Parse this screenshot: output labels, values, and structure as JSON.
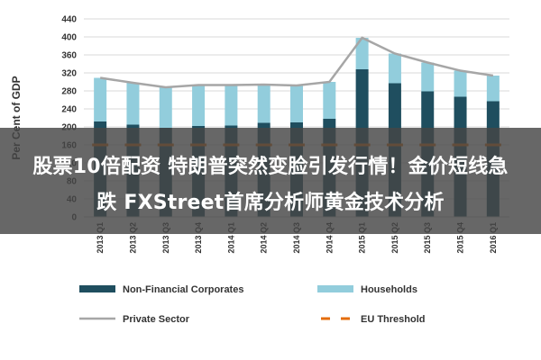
{
  "overlay": {
    "line1": "股票10倍配资 特朗普突然变脸引发行情！金价短线急",
    "line2": "跌 FXStreet首席分析师黄金技术分析"
  },
  "chart_data": {
    "type": "bar",
    "stacked": true,
    "ylabel": "Per Cent of GDP",
    "ylim": [
      0,
      440
    ],
    "yticks": [
      0,
      40,
      80,
      120,
      160,
      200,
      240,
      280,
      320,
      360,
      400,
      440
    ],
    "categories": [
      "2013 Q1",
      "2013 Q2",
      "2013 Q3",
      "2013 Q4",
      "2014 Q1",
      "2014 Q2",
      "2014 Q3",
      "2014 Q4",
      "2015 Q1",
      "2015 Q2",
      "2015 Q3",
      "2015 Q4",
      "2016 Q1"
    ],
    "series": [
      {
        "name": "Non-Financial Corporates",
        "kind": "bar",
        "color": "#1f4e5f",
        "values": [
          212,
          205,
          198,
          202,
          203,
          209,
          210,
          218,
          328,
          297,
          279,
          267,
          257
        ]
      },
      {
        "name": "Households",
        "kind": "bar",
        "color": "#92cddc",
        "values": [
          97,
          93,
          90,
          91,
          90,
          85,
          82,
          82,
          70,
          66,
          64,
          58,
          57
        ]
      },
      {
        "name": "Private Sector",
        "kind": "line",
        "color": "#a6a6a6",
        "values": [
          309,
          298,
          288,
          293,
          293,
          294,
          292,
          300,
          398,
          363,
          343,
          325,
          314
        ]
      },
      {
        "name": "EU Threshold",
        "kind": "dash",
        "color": "#e46c0a",
        "values": [
          160,
          160,
          160,
          160,
          160,
          160,
          160,
          160,
          160,
          160,
          160,
          160,
          160
        ]
      }
    ],
    "legend_position": "bottom"
  }
}
